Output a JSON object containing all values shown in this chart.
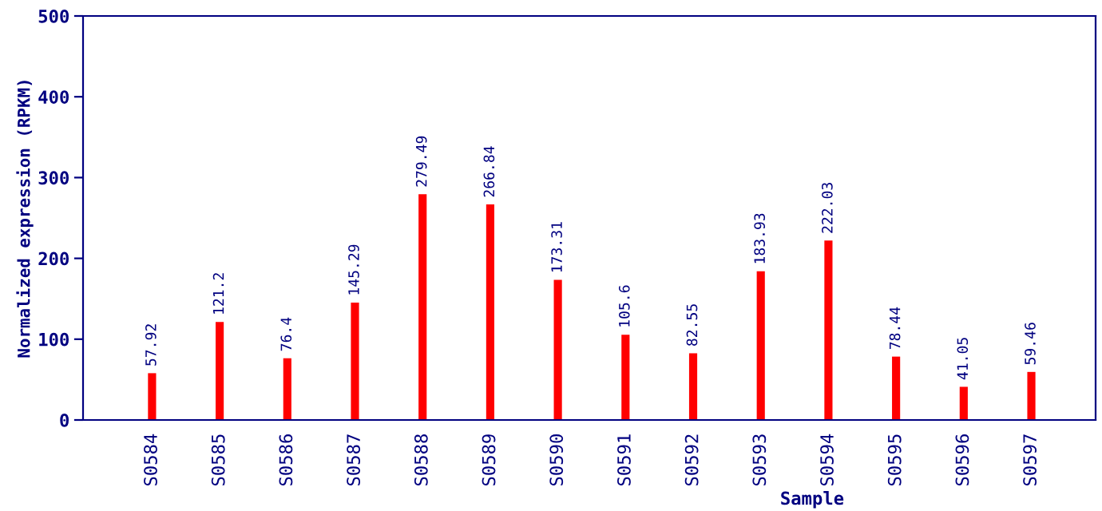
{
  "chart_data": {
    "type": "bar",
    "xlabel": "Sample",
    "ylabel": "Normalized expression (RPKM)",
    "categories": [
      "S0584",
      "S0585",
      "S0586",
      "S0587",
      "S0588",
      "S0589",
      "S0590",
      "S0591",
      "S0592",
      "S0593",
      "S0594",
      "S0595",
      "S0596",
      "S0597"
    ],
    "values": [
      57.92,
      121.2,
      76.4,
      145.29,
      279.49,
      266.84,
      173.31,
      105.6,
      82.55,
      183.93,
      222.03,
      78.44,
      41.05,
      59.46
    ],
    "color": "#ff0000",
    "ylim": [
      0,
      500
    ],
    "yticks": [
      0,
      100,
      200,
      300,
      400,
      500
    ],
    "data_labels": true,
    "grid": false,
    "legend": false
  }
}
